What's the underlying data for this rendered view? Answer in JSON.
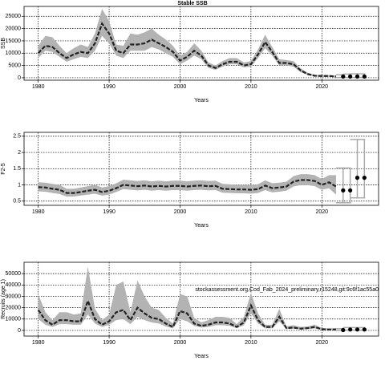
{
  "chart_data": [
    {
      "type": "line",
      "title": "Stable SSB",
      "xlabel": "Years",
      "ylabel": "SSB",
      "xlim": [
        1978,
        2028
      ],
      "xticks": [
        1980,
        1990,
        2000,
        2010,
        2020
      ],
      "ylim": [
        -1000,
        29000
      ],
      "yticks": [
        0,
        5000,
        10000,
        15000,
        20000,
        25000
      ],
      "grid": true,
      "line_color": "#222222",
      "band_color": "#b3b3b3",
      "x": [
        1980,
        1981,
        1982,
        1983,
        1984,
        1985,
        1986,
        1987,
        1988,
        1989,
        1990,
        1991,
        1992,
        1993,
        1994,
        1995,
        1996,
        1997,
        1998,
        1999,
        2000,
        2001,
        2002,
        2003,
        2004,
        2005,
        2006,
        2007,
        2008,
        2009,
        2010,
        2011,
        2012,
        2013,
        2014,
        2015,
        2016,
        2017,
        2018,
        2019,
        2020,
        2021,
        2022
      ],
      "values": [
        10000,
        13000,
        12500,
        10000,
        8000,
        9500,
        10500,
        10000,
        14000,
        22000,
        18000,
        11000,
        10000,
        13500,
        13500,
        14000,
        15500,
        14000,
        12500,
        10500,
        7000,
        8500,
        11000,
        9000,
        5000,
        4000,
        5500,
        6500,
        6500,
        5000,
        5500,
        9500,
        14500,
        10500,
        6000,
        6000,
        5500,
        3000,
        1500,
        800,
        700,
        700,
        500
      ],
      "band": {
        "lower": [
          8000,
          11000,
          10500,
          8500,
          6500,
          7500,
          8500,
          8000,
          11000,
          17000,
          14000,
          9000,
          8000,
          11000,
          11000,
          11000,
          12500,
          11500,
          10000,
          8500,
          5500,
          7000,
          9000,
          7500,
          4000,
          3200,
          4500,
          5500,
          5500,
          4200,
          4500,
          8000,
          12000,
          9000,
          5000,
          5000,
          4500,
          2300,
          1100,
          500,
          400,
          400,
          200
        ],
        "upper": [
          13000,
          17000,
          16500,
          13000,
          10000,
          12000,
          13500,
          12500,
          18000,
          28000,
          23000,
          13500,
          13000,
          18000,
          17500,
          18500,
          20000,
          17500,
          15500,
          13000,
          9000,
          10500,
          14000,
          11000,
          6200,
          5000,
          6800,
          8000,
          8000,
          6200,
          6800,
          11500,
          17500,
          12500,
          7500,
          7200,
          6800,
          3800,
          2000,
          1200,
          1100,
          1100,
          900
        ]
      },
      "proj_x": [
        2023,
        2024,
        2025,
        2026
      ],
      "proj_values": [
        500,
        500,
        500,
        500
      ],
      "proj_lower": [
        100,
        100,
        100,
        100
      ],
      "proj_upper": [
        1200,
        1500,
        1600,
        1600
      ]
    },
    {
      "type": "line",
      "xlabel": "Years",
      "ylabel": "F2-5",
      "xlim": [
        1978,
        2028
      ],
      "xticks": [
        1980,
        1990,
        2000,
        2010,
        2020
      ],
      "ylim": [
        0.37,
        2.62
      ],
      "yticks": [
        0.5,
        1.0,
        1.5,
        2.0,
        2.5
      ],
      "grid": true,
      "line_color": "#222222",
      "band_color": "#b3b3b3",
      "x": [
        1980,
        1981,
        1982,
        1983,
        1984,
        1985,
        1986,
        1987,
        1988,
        1989,
        1990,
        1991,
        1992,
        1993,
        1994,
        1995,
        1996,
        1997,
        1998,
        1999,
        2000,
        2001,
        2002,
        2003,
        2004,
        2005,
        2006,
        2007,
        2008,
        2009,
        2010,
        2011,
        2012,
        2013,
        2014,
        2015,
        2016,
        2017,
        2018,
        2019,
        2020,
        2021,
        2022
      ],
      "values": [
        0.93,
        0.92,
        0.88,
        0.85,
        0.75,
        0.75,
        0.78,
        0.82,
        0.85,
        0.78,
        0.82,
        0.9,
        1.0,
        0.98,
        0.96,
        0.98,
        0.95,
        0.97,
        0.95,
        0.97,
        0.97,
        0.95,
        0.97,
        0.98,
        0.96,
        0.97,
        0.88,
        0.87,
        0.86,
        0.86,
        0.85,
        0.87,
        0.98,
        0.9,
        0.92,
        0.95,
        1.1,
        1.15,
        1.15,
        1.12,
        1.0,
        1.08,
        0.95
      ],
      "band": {
        "lower": [
          0.8,
          0.79,
          0.75,
          0.72,
          0.64,
          0.64,
          0.67,
          0.7,
          0.73,
          0.67,
          0.7,
          0.78,
          0.87,
          0.85,
          0.83,
          0.85,
          0.82,
          0.84,
          0.82,
          0.84,
          0.84,
          0.82,
          0.84,
          0.85,
          0.83,
          0.84,
          0.76,
          0.75,
          0.74,
          0.74,
          0.73,
          0.75,
          0.84,
          0.77,
          0.79,
          0.82,
          0.95,
          0.99,
          0.99,
          0.96,
          0.85,
          0.9,
          0.7
        ],
        "upper": [
          1.08,
          1.07,
          1.03,
          1.0,
          0.88,
          0.88,
          0.92,
          0.96,
          1.0,
          0.92,
          0.96,
          1.05,
          1.16,
          1.14,
          1.12,
          1.14,
          1.11,
          1.13,
          1.11,
          1.13,
          1.13,
          1.11,
          1.13,
          1.14,
          1.12,
          1.13,
          1.03,
          1.02,
          1.0,
          1.0,
          0.99,
          1.02,
          1.14,
          1.05,
          1.07,
          1.1,
          1.27,
          1.33,
          1.33,
          1.3,
          1.18,
          1.3,
          1.3
        ]
      },
      "proj_x": [
        2023,
        2024,
        2025,
        2026
      ],
      "proj_values": [
        0.83,
        0.83,
        1.22,
        1.22
      ],
      "proj_lower": [
        0.45,
        0.45,
        0.6,
        0.6
      ],
      "proj_upper": [
        1.52,
        1.52,
        2.4,
        2.4
      ]
    },
    {
      "type": "line",
      "xlabel": "Years",
      "ylabel": "Recruits (age 1)",
      "annotation": "stockassessment.org,Cod_Fab_2024_preliminary,r15248,git:9c6f1ac55a0",
      "xlim": [
        1978,
        2028
      ],
      "xticks": [
        1980,
        1990,
        2000,
        2010,
        2020
      ],
      "ylim": [
        -5000,
        60000
      ],
      "yticks": [
        0,
        10000,
        20000,
        30000,
        40000,
        50000
      ],
      "grid": true,
      "line_color": "#222222",
      "band_color": "#b3b3b3",
      "x": [
        1980,
        1981,
        1982,
        1983,
        1984,
        1985,
        1986,
        1987,
        1988,
        1989,
        1990,
        1991,
        1992,
        1993,
        1994,
        1995,
        1996,
        1997,
        1998,
        1999,
        2000,
        2001,
        2002,
        2003,
        2004,
        2005,
        2006,
        2007,
        2008,
        2009,
        2010,
        2011,
        2012,
        2013,
        2014,
        2015,
        2016,
        2017,
        2018,
        2019,
        2020,
        2021,
        2022
      ],
      "values": [
        18000,
        9000,
        5000,
        9000,
        9000,
        8000,
        8000,
        26000,
        10000,
        5000,
        8000,
        16000,
        18000,
        9000,
        20000,
        15000,
        11000,
        10000,
        6000,
        3000,
        17000,
        15000,
        6000,
        4000,
        5000,
        7000,
        7000,
        6000,
        3000,
        7000,
        22000,
        9000,
        3000,
        3000,
        12000,
        2000,
        2500,
        1500,
        2000,
        3000,
        1000,
        800,
        800
      ],
      "band": {
        "lower": [
          10000,
          5000,
          3000,
          5500,
          5500,
          5000,
          5000,
          14000,
          6000,
          3000,
          5000,
          9000,
          10000,
          5500,
          12000,
          9000,
          7000,
          6000,
          3500,
          1800,
          10000,
          8000,
          4000,
          2500,
          3000,
          4500,
          4500,
          4000,
          2000,
          4500,
          15000,
          6000,
          1800,
          1800,
          8000,
          1200,
          1500,
          900,
          1200,
          1800,
          500,
          400,
          400
        ],
        "upper": [
          32000,
          16000,
          9000,
          16000,
          16000,
          14000,
          15000,
          56000,
          19000,
          9000,
          14000,
          40000,
          43000,
          16000,
          44000,
          30000,
          20000,
          18000,
          11000,
          6000,
          32000,
          30000,
          11000,
          7000,
          9000,
          12000,
          12000,
          11000,
          5500,
          12000,
          33000,
          15000,
          5000,
          5000,
          19000,
          3500,
          4500,
          3000,
          3500,
          5000,
          2000,
          1800,
          2000
        ]
      },
      "proj_x": [
        2023,
        2024,
        2025,
        2026
      ],
      "proj_values": [
        300,
        800,
        800,
        800
      ],
      "proj_lower": [
        0,
        200,
        200,
        200
      ],
      "proj_upper": [
        1500,
        2500,
        2500,
        2500
      ]
    }
  ]
}
